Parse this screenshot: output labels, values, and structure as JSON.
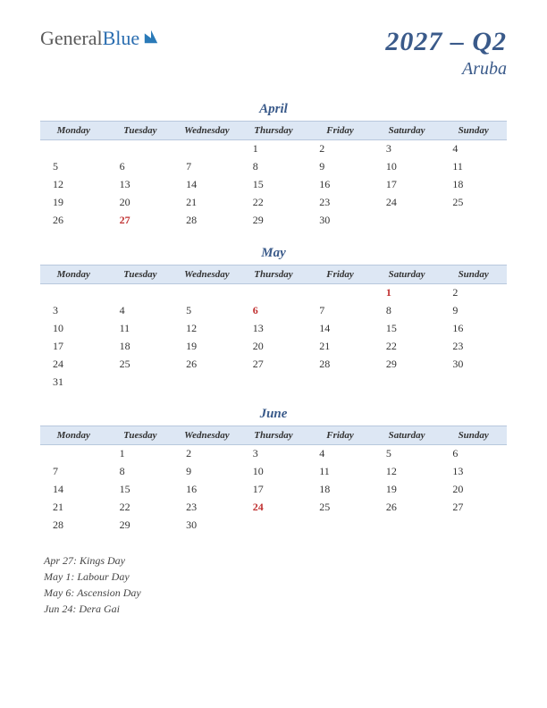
{
  "logo": {
    "part1": "General",
    "part2": "Blue"
  },
  "title": {
    "main": "2027 – Q2",
    "sub": "Aruba"
  },
  "day_headers": [
    "Monday",
    "Tuesday",
    "Wednesday",
    "Thursday",
    "Friday",
    "Saturday",
    "Sunday"
  ],
  "colors": {
    "header_bg": "#dde7f4",
    "accent": "#3a5a8a",
    "holiday": "#c03030",
    "text": "#333333"
  },
  "months": [
    {
      "name": "April",
      "weeks": [
        [
          {
            "d": ""
          },
          {
            "d": ""
          },
          {
            "d": ""
          },
          {
            "d": "1"
          },
          {
            "d": "2"
          },
          {
            "d": "3"
          },
          {
            "d": "4"
          }
        ],
        [
          {
            "d": "5"
          },
          {
            "d": "6"
          },
          {
            "d": "7"
          },
          {
            "d": "8"
          },
          {
            "d": "9"
          },
          {
            "d": "10"
          },
          {
            "d": "11"
          }
        ],
        [
          {
            "d": "12"
          },
          {
            "d": "13"
          },
          {
            "d": "14"
          },
          {
            "d": "15"
          },
          {
            "d": "16"
          },
          {
            "d": "17"
          },
          {
            "d": "18"
          }
        ],
        [
          {
            "d": "19"
          },
          {
            "d": "20"
          },
          {
            "d": "21"
          },
          {
            "d": "22"
          },
          {
            "d": "23"
          },
          {
            "d": "24"
          },
          {
            "d": "25"
          }
        ],
        [
          {
            "d": "26"
          },
          {
            "d": "27",
            "h": true
          },
          {
            "d": "28"
          },
          {
            "d": "29"
          },
          {
            "d": "30"
          },
          {
            "d": ""
          },
          {
            "d": ""
          }
        ]
      ]
    },
    {
      "name": "May",
      "weeks": [
        [
          {
            "d": ""
          },
          {
            "d": ""
          },
          {
            "d": ""
          },
          {
            "d": ""
          },
          {
            "d": ""
          },
          {
            "d": "1",
            "h": true
          },
          {
            "d": "2"
          }
        ],
        [
          {
            "d": "3"
          },
          {
            "d": "4"
          },
          {
            "d": "5"
          },
          {
            "d": "6",
            "h": true
          },
          {
            "d": "7"
          },
          {
            "d": "8"
          },
          {
            "d": "9"
          }
        ],
        [
          {
            "d": "10"
          },
          {
            "d": "11"
          },
          {
            "d": "12"
          },
          {
            "d": "13"
          },
          {
            "d": "14"
          },
          {
            "d": "15"
          },
          {
            "d": "16"
          }
        ],
        [
          {
            "d": "17"
          },
          {
            "d": "18"
          },
          {
            "d": "19"
          },
          {
            "d": "20"
          },
          {
            "d": "21"
          },
          {
            "d": "22"
          },
          {
            "d": "23"
          }
        ],
        [
          {
            "d": "24"
          },
          {
            "d": "25"
          },
          {
            "d": "26"
          },
          {
            "d": "27"
          },
          {
            "d": "28"
          },
          {
            "d": "29"
          },
          {
            "d": "30"
          }
        ],
        [
          {
            "d": "31"
          },
          {
            "d": ""
          },
          {
            "d": ""
          },
          {
            "d": ""
          },
          {
            "d": ""
          },
          {
            "d": ""
          },
          {
            "d": ""
          }
        ]
      ]
    },
    {
      "name": "June",
      "weeks": [
        [
          {
            "d": ""
          },
          {
            "d": "1"
          },
          {
            "d": "2"
          },
          {
            "d": "3"
          },
          {
            "d": "4"
          },
          {
            "d": "5"
          },
          {
            "d": "6"
          }
        ],
        [
          {
            "d": "7"
          },
          {
            "d": "8"
          },
          {
            "d": "9"
          },
          {
            "d": "10"
          },
          {
            "d": "11"
          },
          {
            "d": "12"
          },
          {
            "d": "13"
          }
        ],
        [
          {
            "d": "14"
          },
          {
            "d": "15"
          },
          {
            "d": "16"
          },
          {
            "d": "17"
          },
          {
            "d": "18"
          },
          {
            "d": "19"
          },
          {
            "d": "20"
          }
        ],
        [
          {
            "d": "21"
          },
          {
            "d": "22"
          },
          {
            "d": "23"
          },
          {
            "d": "24",
            "h": true
          },
          {
            "d": "25"
          },
          {
            "d": "26"
          },
          {
            "d": "27"
          }
        ],
        [
          {
            "d": "28"
          },
          {
            "d": "29"
          },
          {
            "d": "30"
          },
          {
            "d": ""
          },
          {
            "d": ""
          },
          {
            "d": ""
          },
          {
            "d": ""
          }
        ]
      ]
    }
  ],
  "holidays": [
    "Apr 27: Kings Day",
    "May 1: Labour Day",
    "May 6: Ascension Day",
    "Jun 24: Dera Gai"
  ]
}
